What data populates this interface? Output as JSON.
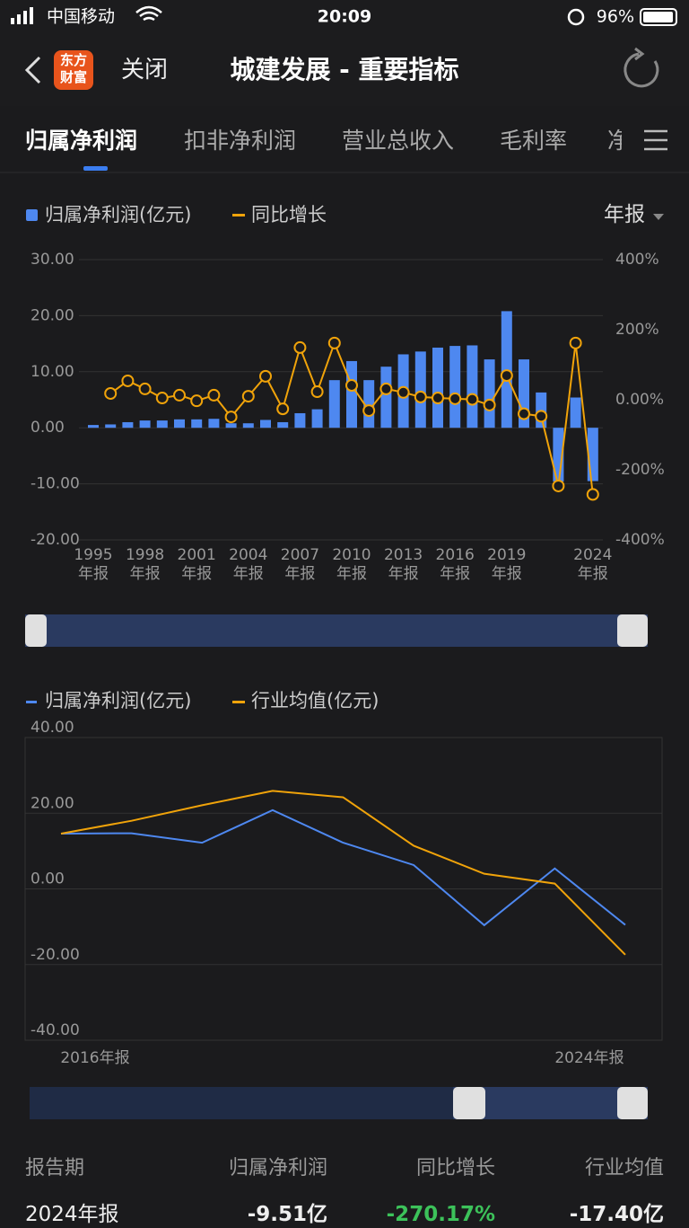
{
  "status_bar": {
    "carrier": "中国移动",
    "time": "20:09",
    "battery": "96%"
  },
  "header": {
    "logo": "东方\n财富",
    "close": "关闭",
    "title": "城建发展 - 重要指标"
  },
  "tabs": [
    "归属净利润",
    "扣非净利润",
    "营业总收入",
    "毛利率",
    "净"
  ],
  "period_selector": "年报",
  "chart_data": [
    {
      "type": "bar",
      "categories": [
        "1995\n年报",
        null,
        null,
        "1998\n年报",
        null,
        null,
        "2001\n年报",
        null,
        null,
        "2004\n年报",
        null,
        null,
        "2007\n年报",
        null,
        null,
        "2010\n年报",
        null,
        null,
        "2013\n年报",
        null,
        null,
        "2016\n年报",
        null,
        null,
        "2019\n年报",
        null,
        null,
        null,
        null,
        "2024\n年报"
      ],
      "series": [
        {
          "name": "归属净利润(亿元)",
          "type": "bar",
          "color": "#4e88f0",
          "values": [
            0.5,
            0.6,
            1.0,
            1.3,
            1.3,
            1.5,
            1.5,
            1.6,
            0.8,
            0.8,
            1.4,
            1.0,
            2.6,
            3.3,
            8.5,
            11.9,
            8.5,
            10.9,
            13.1,
            13.6,
            14.3,
            14.6,
            14.7,
            12.2,
            20.8,
            12.2,
            6.3,
            -9.6,
            5.4,
            -9.51
          ]
        },
        {
          "name": "同比增长",
          "type": "line",
          "axis": "y2",
          "color": "#f0a30a",
          "values": [
            null,
            18,
            54,
            31,
            5,
            13,
            -3,
            13,
            -49,
            10,
            67,
            -26,
            149,
            23,
            162,
            41,
            -31,
            31,
            21,
            8,
            5,
            3,
            1,
            -15,
            69,
            -40,
            -47,
            -246,
            162,
            -270.17
          ]
        }
      ],
      "ylim": [
        -20,
        30
      ],
      "yticks": [
        {
          "value": -20,
          "label": "-20.00"
        },
        {
          "value": -10,
          "label": "-10.00"
        },
        {
          "value": 0,
          "label": "0.00"
        },
        {
          "value": 10,
          "label": "10.00"
        },
        {
          "value": 20,
          "label": "20.00"
        },
        {
          "value": 30,
          "label": "30.00"
        }
      ],
      "y2lim": [
        -400,
        400
      ],
      "y2ticks": [
        {
          "value": -400,
          "label": "-400%"
        },
        {
          "value": -200,
          "label": "-200%"
        },
        {
          "value": 0,
          "label": "0.00%"
        },
        {
          "value": 200,
          "label": "200%"
        },
        {
          "value": 400,
          "label": "400%"
        }
      ],
      "grid": true
    },
    {
      "type": "line",
      "categories": [
        "2016年报",
        null,
        null,
        null,
        null,
        null,
        null,
        null,
        "2024年报"
      ],
      "series": [
        {
          "name": "归属净利润(亿元)",
          "color": "#4e88f0",
          "values": [
            14.6,
            14.7,
            12.2,
            20.8,
            12.2,
            6.3,
            -9.6,
            5.4,
            -9.51
          ]
        },
        {
          "name": "行业均值(亿元)",
          "color": "#f0a30a",
          "values": [
            14.6,
            18.0,
            22.1,
            25.9,
            24.2,
            11.4,
            4.0,
            1.4,
            -17.4
          ]
        }
      ],
      "ylim": [
        -40,
        40
      ],
      "yticks": [
        {
          "value": -40,
          "label": "-40.00"
        },
        {
          "value": -20,
          "label": "-20.00"
        },
        {
          "value": 0,
          "label": "0.00"
        },
        {
          "value": 20,
          "label": "20.00"
        },
        {
          "value": 40,
          "label": "40.00"
        }
      ],
      "grid": true
    }
  ],
  "table": {
    "header": [
      "报告期",
      "归属净利润",
      "同比增长",
      "行业均值"
    ],
    "rows": [
      [
        "2024年报",
        "-9.51亿",
        "-270.17%",
        "-17.40亿"
      ]
    ]
  }
}
